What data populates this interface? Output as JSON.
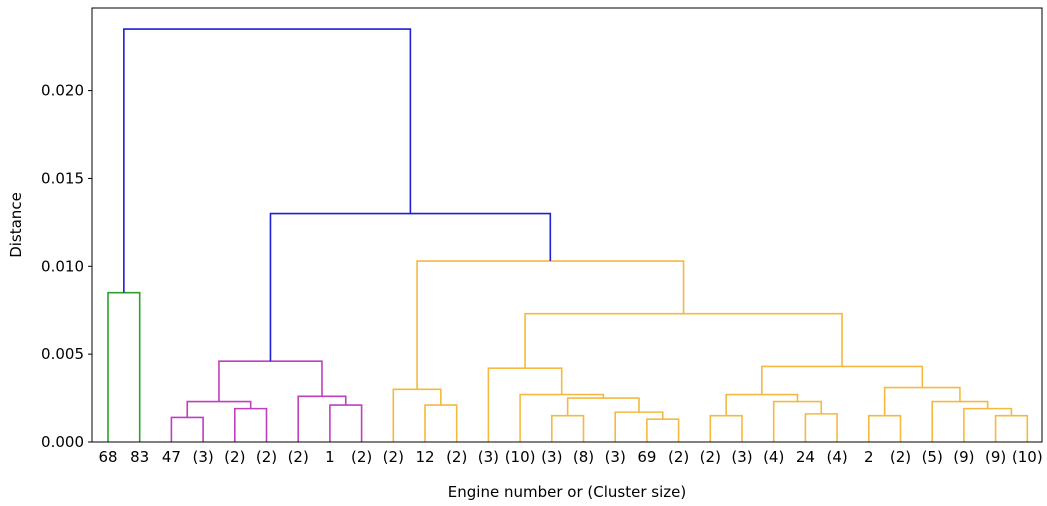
{
  "chart_data": {
    "type": "dendrogram",
    "title": "",
    "xlabel": "Engine number or (Cluster size)",
    "ylabel": "Distance",
    "ylim": [
      0,
      0.0247
    ],
    "yticks": [
      {
        "value": 0.0,
        "label": "0.000"
      },
      {
        "value": 0.005,
        "label": "0.005"
      },
      {
        "value": 0.01,
        "label": "0.010"
      },
      {
        "value": 0.015,
        "label": "0.015"
      },
      {
        "value": 0.02,
        "label": "0.020"
      }
    ],
    "grid": false,
    "leaves": [
      "68",
      "83",
      "47",
      "(3)",
      "(2)",
      "(2)",
      "(2)",
      "1",
      "(2)",
      "(2)",
      "12",
      "(2)",
      "(3)",
      "(10)",
      "(3)",
      "(8)",
      "(3)",
      "69",
      "(2)",
      "(2)",
      "(3)",
      "(4)",
      "24",
      "(4)",
      "2",
      "(2)",
      "(5)",
      "(9)",
      "(9)",
      "(10)"
    ],
    "colors": {
      "green": "#2ca02c",
      "magenta": "#bf3fbf",
      "orange": "#f5b940",
      "blue": "#1f1fd6"
    },
    "merges": [
      {
        "id": "g1",
        "left": 0,
        "right": 1,
        "height": 0.0085,
        "color": "green"
      },
      {
        "id": "m1",
        "left": 2,
        "right": 3,
        "height": 0.0014,
        "color": "magenta"
      },
      {
        "id": "m2",
        "left": 4,
        "right": 5,
        "height": 0.0019,
        "color": "magenta"
      },
      {
        "id": "m3",
        "left": "m1",
        "right": "m2",
        "height": 0.0023,
        "color": "magenta"
      },
      {
        "id": "m4",
        "left": 7,
        "right": 8,
        "height": 0.0021,
        "color": "magenta"
      },
      {
        "id": "m5",
        "left": 6,
        "right": "m4",
        "height": 0.0026,
        "color": "magenta"
      },
      {
        "id": "m6",
        "left": "m3",
        "right": "m5",
        "height": 0.0046,
        "color": "magenta"
      },
      {
        "id": "o1",
        "left": 10,
        "right": 11,
        "height": 0.0021,
        "color": "orange"
      },
      {
        "id": "o2",
        "left": 9,
        "right": "o1",
        "height": 0.003,
        "color": "orange"
      },
      {
        "id": "o3",
        "left": 14,
        "right": 15,
        "height": 0.0015,
        "color": "orange"
      },
      {
        "id": "o4",
        "left": 17,
        "right": 18,
        "height": 0.0013,
        "color": "orange"
      },
      {
        "id": "o5",
        "left": 16,
        "right": "o4",
        "height": 0.0017,
        "color": "orange"
      },
      {
        "id": "o6",
        "left": "o3",
        "right": "o5",
        "height": 0.0025,
        "color": "orange"
      },
      {
        "id": "o7",
        "left": 13,
        "right": "o6",
        "height": 0.0027,
        "color": "orange"
      },
      {
        "id": "o8",
        "left": 12,
        "right": "o7",
        "height": 0.0042,
        "color": "orange"
      },
      {
        "id": "o9",
        "left": 19,
        "right": 20,
        "height": 0.0015,
        "color": "orange"
      },
      {
        "id": "o10",
        "left": 22,
        "right": 23,
        "height": 0.0016,
        "color": "orange"
      },
      {
        "id": "o11",
        "left": 21,
        "right": "o10",
        "height": 0.0023,
        "color": "orange"
      },
      {
        "id": "o12",
        "left": "o9",
        "right": "o11",
        "height": 0.0027,
        "color": "orange"
      },
      {
        "id": "o13",
        "left": 24,
        "right": 25,
        "height": 0.0015,
        "color": "orange"
      },
      {
        "id": "o14",
        "left": 28,
        "right": 29,
        "height": 0.0015,
        "color": "orange"
      },
      {
        "id": "o15",
        "left": 27,
        "right": "o14",
        "height": 0.0019,
        "color": "orange"
      },
      {
        "id": "o16",
        "left": 26,
        "right": "o15",
        "height": 0.0023,
        "color": "orange"
      },
      {
        "id": "o17",
        "left": "o13",
        "right": "o16",
        "height": 0.0031,
        "color": "orange"
      },
      {
        "id": "o18",
        "left": "o12",
        "right": "o17",
        "height": 0.0043,
        "color": "orange"
      },
      {
        "id": "o19",
        "left": "o8",
        "right": "o18",
        "height": 0.0073,
        "color": "orange"
      },
      {
        "id": "o20",
        "left": "o2",
        "right": "o19",
        "height": 0.0103,
        "color": "orange"
      },
      {
        "id": "b1",
        "left": "m6",
        "right": "o20",
        "height": 0.013,
        "color": "blue"
      },
      {
        "id": "b2",
        "left": "g1",
        "right": "b1",
        "height": 0.0235,
        "color": "blue"
      }
    ]
  }
}
